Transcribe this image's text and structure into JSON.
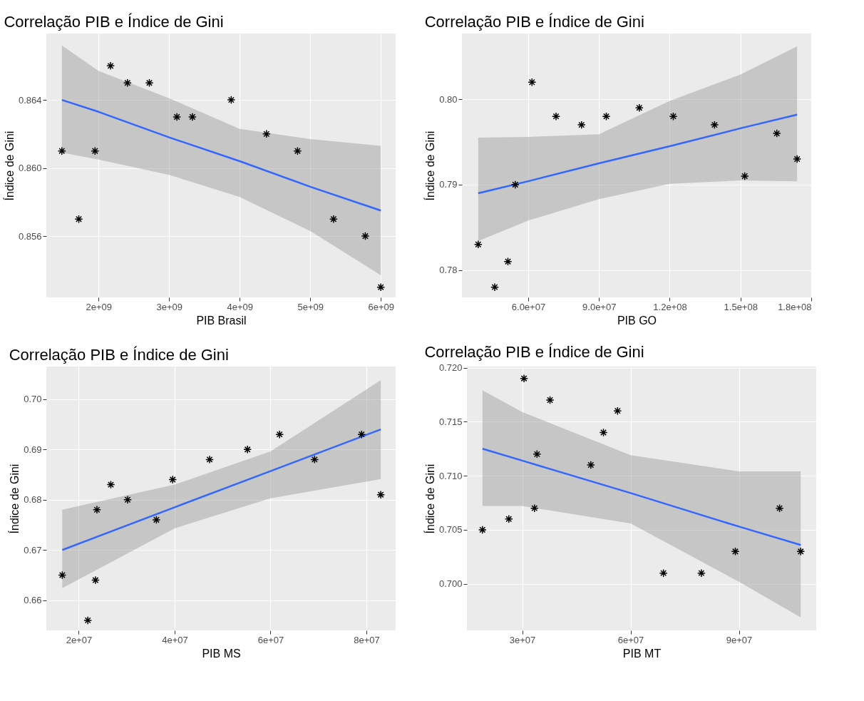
{
  "chart_data": [
    {
      "type": "scatter",
      "title": "Correlação PIB e Índice de Gini",
      "xlabel": "PIB Brasil",
      "ylabel": "Índice de Gini",
      "grid": true,
      "xlim": [
        1260000000,
        6210000000
      ],
      "ylim": [
        0.8524,
        0.8679
      ],
      "xticks": [
        {
          "value": 2000000000,
          "label": "2e+09"
        },
        {
          "value": 3000000000,
          "label": "3e+09"
        },
        {
          "value": 4000000000,
          "label": "4e+09"
        },
        {
          "value": 5000000000,
          "label": "5e+09"
        },
        {
          "value": 6000000000,
          "label": "6e+09"
        }
      ],
      "yticks": [
        0.856,
        {
          "value": 0.86,
          "label": "0.860"
        },
        0.864
      ],
      "series": [
        {
          "type": "line",
          "marker": "none",
          "color": "#3366ff",
          "x": [
            1480000000,
            2000000000,
            3000000000,
            4000000000,
            5000000000,
            6000000000
          ],
          "values": [
            0.864,
            0.8633,
            0.8618,
            0.8604,
            0.8589,
            0.8575
          ],
          "lower": [
            0.8609,
            0.8605,
            0.8596,
            0.8583,
            0.8563,
            0.8537
          ],
          "upper": [
            0.8672,
            0.8657,
            0.8641,
            0.8623,
            0.8617,
            0.8613
          ]
        },
        {
          "marker": "cross",
          "color": "#000000",
          "x": [
            1480000000,
            1720000000,
            1950000000,
            2170000000,
            2410000000,
            2720000000,
            3110000000,
            3330000000,
            3880000000,
            4380000000,
            4820000000,
            5330000000,
            5780000000,
            6000000000
          ],
          "values": [
            0.861,
            0.857,
            0.861,
            0.866,
            0.865,
            0.865,
            0.863,
            0.863,
            0.864,
            0.862,
            0.861,
            0.857,
            0.856,
            0.853
          ]
        }
      ]
    },
    {
      "type": "scatter",
      "title": "Correlação PIB e Índice de Gini",
      "xlabel": "PIB GO",
      "ylabel": "Índice de Gini",
      "grid": true,
      "xlim": [
        31900000,
        180000000
      ],
      "ylim": [
        0.7768,
        0.8077
      ],
      "xticks": [
        {
          "value": 60000000,
          "label": "6.0e+07"
        },
        {
          "value": 90000000,
          "label": "9.0e+07"
        },
        {
          "value": 120000000,
          "label": "1.2e+08"
        },
        {
          "value": 150000000,
          "label": "1.5e+08"
        },
        {
          "value": 180000000,
          "label": "1.8e+08"
        }
      ],
      "yticks": [
        0.78,
        0.79,
        {
          "value": 0.8,
          "label": "0.80"
        }
      ],
      "series": [
        {
          "type": "line",
          "marker": "none",
          "color": "#3366ff",
          "x": [
            38800000,
            60000000,
            90000000,
            120000000,
            150000000,
            174000000
          ],
          "values": [
            0.789,
            0.7904,
            0.7925,
            0.7945,
            0.7966,
            0.7982
          ],
          "lower": [
            0.7834,
            0.7858,
            0.7883,
            0.7901,
            0.7905,
            0.7904
          ],
          "upper": [
            0.7955,
            0.7956,
            0.7959,
            0.7998,
            0.8029,
            0.8062
          ]
        },
        {
          "marker": "cross",
          "color": "#000000",
          "x": [
            38800000,
            45800000,
            51400000,
            54500000,
            61600000,
            71800000,
            82600000,
            93100000,
            107100000,
            121500000,
            139000000,
            151800000,
            165400000,
            174000000
          ],
          "values": [
            0.783,
            0.778,
            0.781,
            0.79,
            0.802,
            0.798,
            0.797,
            0.798,
            0.799,
            0.798,
            0.797,
            0.791,
            0.796,
            0.793
          ]
        }
      ]
    },
    {
      "type": "scatter",
      "title": "Correlação PIB e Índice de Gini",
      "xlabel": "PIB MS",
      "ylabel": "Índice de Gini",
      "grid": true,
      "xlim": [
        13250000,
        86100000
      ],
      "ylim": [
        0.654,
        0.7065
      ],
      "xticks": [
        {
          "value": 20000000,
          "label": "2e+07"
        },
        {
          "value": 40000000,
          "label": "4e+07"
        },
        {
          "value": 60000000,
          "label": "6e+07"
        },
        {
          "value": 80000000,
          "label": "8e+07"
        }
      ],
      "yticks": [
        0.66,
        0.67,
        0.68,
        0.69,
        {
          "value": 0.7,
          "label": "0.70"
        }
      ],
      "series": [
        {
          "type": "line",
          "marker": "none",
          "color": "#3366ff",
          "x": [
            16570000,
            40000000,
            60000000,
            83000000
          ],
          "values": [
            0.67,
            0.6785,
            0.6857,
            0.694
          ],
          "lower": [
            0.6624,
            0.6743,
            0.6803,
            0.6841
          ],
          "upper": [
            0.678,
            0.683,
            0.6896,
            0.7038
          ]
        },
        {
          "marker": "cross",
          "color": "#000000",
          "x": [
            16570000,
            21900000,
            23500000,
            23800000,
            26700000,
            30200000,
            36200000,
            39600000,
            47300000,
            55200000,
            61900000,
            69200000,
            79000000,
            83000000
          ],
          "values": [
            0.665,
            0.656,
            0.664,
            0.678,
            0.683,
            0.68,
            0.676,
            0.684,
            0.688,
            0.69,
            0.693,
            0.688,
            0.693,
            0.681
          ]
        }
      ]
    },
    {
      "type": "scatter",
      "title": "Correlação PIB e Índice de Gini",
      "xlabel": "PIB MT",
      "ylabel": "Índice de Gini",
      "grid": true,
      "xlim": [
        14700000,
        111400000
      ],
      "ylim": [
        0.6957,
        0.7201
      ],
      "xticks": [
        {
          "value": 30000000,
          "label": "3e+07"
        },
        {
          "value": 60000000,
          "label": "6e+07"
        },
        {
          "value": 90000000,
          "label": "9e+07"
        }
      ],
      "yticks": [
        {
          "value": 0.7,
          "label": "0.700"
        },
        0.705,
        {
          "value": 0.71,
          "label": "0.710"
        },
        0.715,
        {
          "value": 0.72,
          "label": "0.720"
        }
      ],
      "series": [
        {
          "type": "line",
          "marker": "none",
          "color": "#3366ff",
          "x": [
            19000000,
            30000000,
            60000000,
            90000000,
            107100000
          ],
          "values": [
            0.7125,
            0.7114,
            0.7084,
            0.7053,
            0.7036
          ],
          "lower": [
            0.7072,
            0.7072,
            0.7056,
            0.7002,
            0.6969
          ],
          "upper": [
            0.7179,
            0.7159,
            0.7119,
            0.7104,
            0.7104
          ]
        },
        {
          "marker": "cross",
          "color": "#000000",
          "x": [
            19000000,
            26300000,
            30500000,
            33400000,
            34100000,
            37700000,
            49000000,
            52500000,
            56400000,
            69100000,
            79600000,
            89000000,
            101250000,
            107100000
          ],
          "values": [
            0.705,
            0.706,
            0.719,
            0.707,
            0.712,
            0.717,
            0.711,
            0.714,
            0.716,
            0.701,
            0.701,
            0.703,
            0.707,
            0.703
          ]
        }
      ]
    }
  ]
}
